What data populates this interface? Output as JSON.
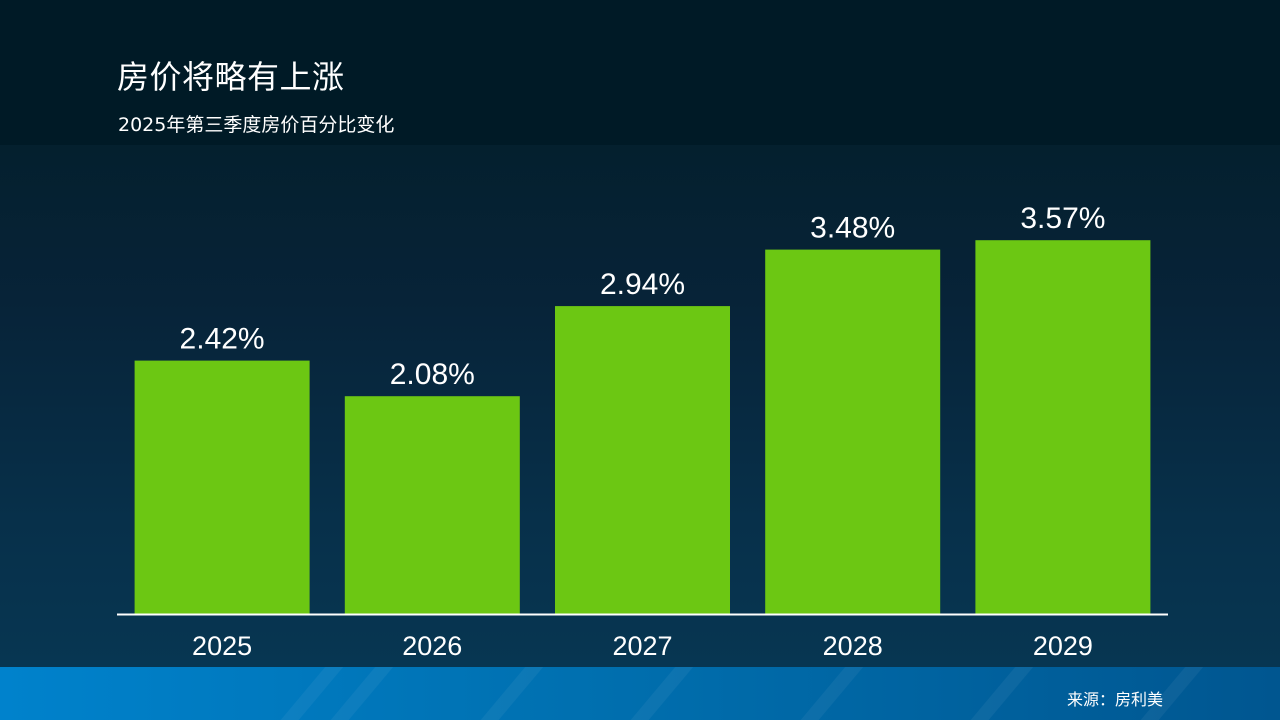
{
  "header": {
    "title": "房价将略有上涨",
    "subtitle": "2025年第三季度房价百分比变化"
  },
  "footer": {
    "source": "来源：房利美"
  },
  "colors": {
    "bar": "#6cc713",
    "text": "#ffffff",
    "header_bg": "#001a26",
    "footer_bg": "#0077bb"
  },
  "chart_data": {
    "type": "bar",
    "categories": [
      "2025",
      "2026",
      "2027",
      "2028",
      "2029"
    ],
    "values": [
      2.42,
      2.08,
      2.94,
      3.48,
      3.57
    ],
    "value_labels": [
      "2.42%",
      "2.08%",
      "2.94%",
      "3.48%",
      "3.57%"
    ],
    "title": "房价将略有上涨",
    "subtitle": "2025年第三季度房价百分比变化",
    "xlabel": "",
    "ylabel": "",
    "ylim": [
      0,
      4.24
    ],
    "grid": false,
    "legend": "none"
  }
}
